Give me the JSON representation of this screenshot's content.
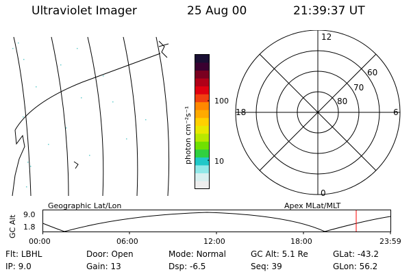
{
  "header": {
    "instrument": "Ultraviolet Imager",
    "date": "25 Aug 00",
    "time": "21:39:37 UT"
  },
  "colorbar": {
    "unit_label": "photon cm⁻²s⁻¹",
    "tick_labels": [
      "100",
      "10"
    ],
    "colors": [
      "#1a0f33",
      "#3a0030",
      "#7a0020",
      "#b00018",
      "#e00010",
      "#f04010",
      "#ff8800",
      "#ffaa00",
      "#ffd000",
      "#e8e800",
      "#b8e800",
      "#70e000",
      "#30d040",
      "#20c8c8",
      "#90e8e8",
      "#d8f0f0",
      "#eeeeee"
    ]
  },
  "left_panel": {
    "caption": "Geographic Lat/Lon"
  },
  "right_panel": {
    "caption": "Apex MLat/MLT",
    "mlt_labels": {
      "top": "12",
      "bottom": "0",
      "left": "18",
      "right": "6"
    },
    "lat_labels": [
      "60",
      "70",
      "80"
    ]
  },
  "altitude_plot": {
    "y_label": "GC Alt",
    "y_ticks": [
      "9.0",
      "1.8"
    ],
    "x_ticks": [
      "00:00",
      "06:00",
      "12:00",
      "18:00",
      "23:59"
    ],
    "marker_color": "#ff0000"
  },
  "status": {
    "flt_label": "Flt:",
    "flt_value": "LBHL",
    "ip_label": "IP:",
    "ip_value": "9.0",
    "door_label": "Door:",
    "door_value": "Open",
    "gain_label": "Gain:",
    "gain_value": "13",
    "mode_label": "Mode:",
    "mode_value": "Normal",
    "dsp_label": "Dsp:",
    "dsp_value": "-6.5",
    "gcalt_label": "GC Alt:",
    "gcalt_value": "5.1 Re",
    "seq_label": "Seq:",
    "seq_value": "39",
    "glat_label": "GLat:",
    "glat_value": "-43.2",
    "glon_label": "GLon:",
    "glon_value": "56.2"
  }
}
